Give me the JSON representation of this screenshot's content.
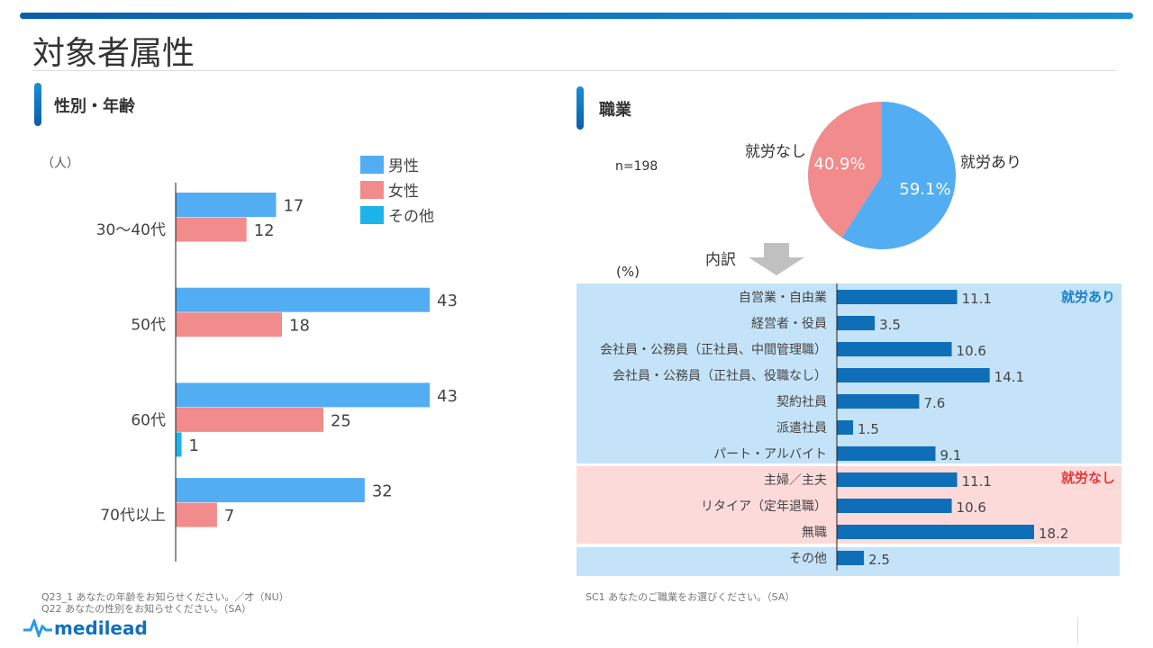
{
  "page_title": "対象者属性",
  "left_section": {
    "title": "性別・年齢",
    "unit": "（人）"
  },
  "right_section": {
    "title": "職業",
    "n_label": "n=198",
    "breakdown_label": "内訳",
    "unit": "(%)"
  },
  "colors": {
    "male": "#53adf2",
    "female": "#f28b8b",
    "other": "#1db4ec",
    "pie_yes": "#53adf2",
    "pie_no": "#f28b8b",
    "bar": "#0f6eb8",
    "band_blue": "#c5e3f8",
    "band_pink": "#fddada",
    "yes_label": "#1a7fc8",
    "no_label": "#e83838"
  },
  "chart_data": [
    {
      "type": "bar",
      "orientation": "horizontal",
      "ylabel": "（人）",
      "categories": [
        "30～40代",
        "50代",
        "60代",
        "70代以上"
      ],
      "series": [
        {
          "name": "男性",
          "values": [
            17,
            43,
            43,
            32
          ]
        },
        {
          "name": "女性",
          "values": [
            12,
            18,
            25,
            7
          ]
        },
        {
          "name": "その他",
          "values": [
            null,
            null,
            1,
            null
          ]
        }
      ],
      "legend": "top-right"
    },
    {
      "type": "pie",
      "slices": [
        {
          "label": "就労あり",
          "value": 59.1,
          "display": "59.1%"
        },
        {
          "label": "就労なし",
          "value": 40.9,
          "display": "40.9%"
        }
      ]
    },
    {
      "type": "bar",
      "orientation": "horizontal",
      "ylabel": "(%)",
      "groups": [
        {
          "label": "就労あり",
          "categories": [
            "自営業・自由業",
            "経営者・役員",
            "会社員・公務員（正社員、中間管理職）",
            "会社員・公務員（正社員、役職なし）",
            "契約社員",
            "派遣社員",
            "パート・アルバイト"
          ],
          "values": [
            11.1,
            3.5,
            10.6,
            14.1,
            7.6,
            1.5,
            9.1
          ]
        },
        {
          "label": "就労なし",
          "categories": [
            "主婦／主夫",
            "リタイア（定年退職）",
            "無職"
          ],
          "values": [
            11.1,
            10.6,
            18.2
          ]
        },
        {
          "label": "",
          "categories": [
            "その他"
          ],
          "values": [
            2.5
          ]
        }
      ]
    }
  ],
  "notes": {
    "left": [
      "Q23_1  あなたの年齢をお知らせください。／才（NU）",
      "Q22  あなたの性別をお知らせください。（SA）"
    ],
    "right": "SC1  あなたのご職業をお選びください。（SA）"
  },
  "logo": "medilead"
}
